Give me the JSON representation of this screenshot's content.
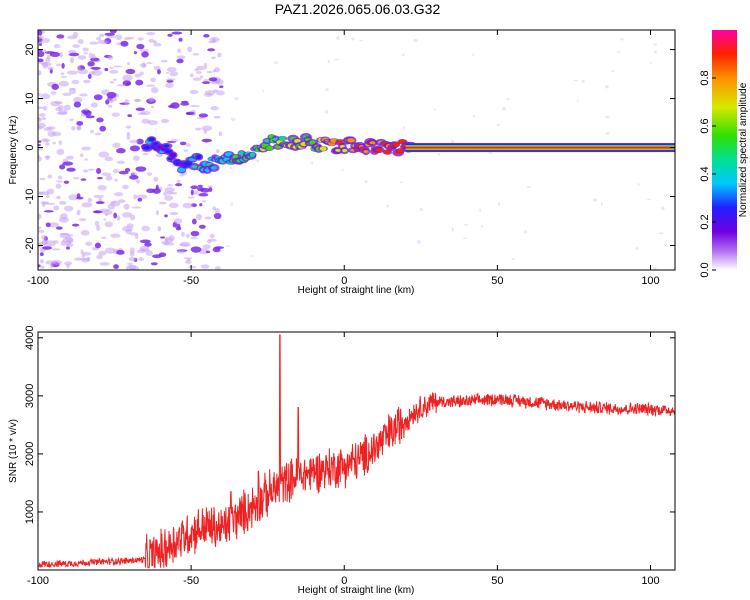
{
  "title": "PAZ1.2026.065.06.03.G32",
  "colors": {
    "background": "#ffffff",
    "axis": "#000000",
    "snr_line": "#ee2222",
    "spectrogram_low": "#c9a6f0",
    "spectrogram_mid": "#6a1ee0",
    "spectrogram_peak": "#e01010"
  },
  "chart_data": [
    {
      "type": "heatmap",
      "name": "spectrogram",
      "xlabel": "Height of straight line (km)",
      "ylabel": "Frequency (Hz)",
      "xlim": [
        -100,
        108
      ],
      "ylim": [
        -25,
        24
      ],
      "xticks": [
        -100,
        -50,
        0,
        50,
        100
      ],
      "yticks": [
        20,
        10,
        0,
        -10,
        -20
      ],
      "colorbar": {
        "label": "Normalized spectral amplitude",
        "range": [
          0,
          1
        ],
        "ticks": [
          0.0,
          0.2,
          0.4,
          0.6,
          0.8
        ],
        "tick_labels": [
          "0.0",
          "0.2",
          "0.4",
          "0.6",
          "0.8"
        ],
        "colormap": [
          "#ffffff",
          "#b070f0",
          "#7000e0",
          "#2020ff",
          "#00c8ff",
          "#00e090",
          "#30e000",
          "#d8e800",
          "#ff9000",
          "#ff2000",
          "#ff00a0"
        ]
      },
      "peak_track": [
        {
          "x": -65,
          "y": 1.0
        },
        {
          "x": -60,
          "y": 0.5
        },
        {
          "x": -57,
          "y": -1.5
        },
        {
          "x": -53,
          "y": -4.5
        },
        {
          "x": -50,
          "y": -2.5
        },
        {
          "x": -45,
          "y": -3.5
        },
        {
          "x": -38,
          "y": -2.5
        },
        {
          "x": -32,
          "y": -1.5
        },
        {
          "x": -25,
          "y": 1.0
        },
        {
          "x": -18,
          "y": 1.5
        },
        {
          "x": -12,
          "y": 1.0
        },
        {
          "x": -5,
          "y": 0.3
        },
        {
          "x": 5,
          "y": 0.3
        },
        {
          "x": 15,
          "y": 0.0
        },
        {
          "x": 25,
          "y": 0.0
        },
        {
          "x": 108,
          "y": 0.0
        }
      ]
    },
    {
      "type": "line",
      "name": "snr",
      "xlabel": "Height of straight line (km)",
      "ylabel": "SNR (10 * v/v)",
      "xlim": [
        -100,
        108
      ],
      "ylim": [
        0,
        4100
      ],
      "xticks": [
        -100,
        -50,
        0,
        50,
        100
      ],
      "yticks": [
        1000,
        2000,
        3000,
        4000
      ],
      "series": [
        {
          "name": "SNR",
          "x": [
            -100,
            -90,
            -80,
            -70,
            -65,
            -60,
            -55,
            -50,
            -45,
            -40,
            -35,
            -30,
            -25,
            -22,
            -20,
            -18,
            -15,
            -10,
            -5,
            0,
            5,
            10,
            15,
            20,
            25,
            30,
            40,
            50,
            60,
            70,
            80,
            90,
            100,
            108
          ],
          "values": [
            100,
            110,
            140,
            160,
            180,
            300,
            500,
            650,
            750,
            700,
            900,
            1100,
            1300,
            1400,
            1500,
            1550,
            1600,
            1700,
            1750,
            1800,
            1900,
            2100,
            2350,
            2600,
            2800,
            2900,
            2900,
            2950,
            2900,
            2850,
            2800,
            2780,
            2770,
            2750
          ]
        }
      ],
      "spikes": [
        {
          "x": -21,
          "value": 4050
        },
        {
          "x": -37,
          "value": 1350
        },
        {
          "x": -28,
          "value": 1700
        },
        {
          "x": -15,
          "value": 2800
        }
      ]
    }
  ]
}
